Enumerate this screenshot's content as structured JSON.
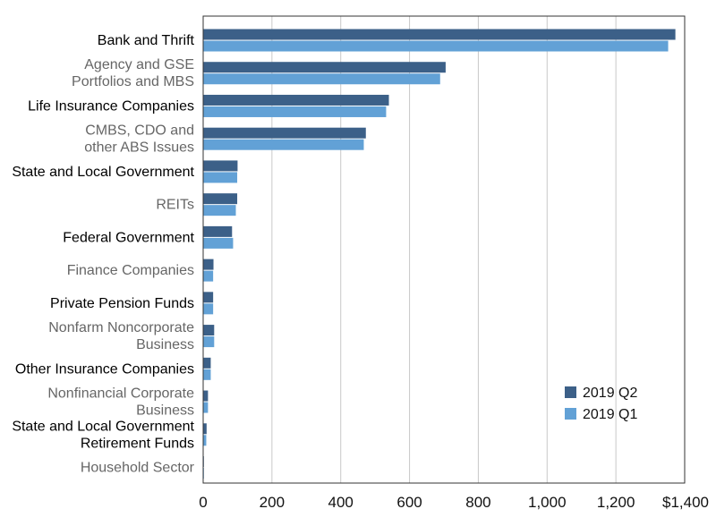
{
  "chart_data": {
    "type": "bar",
    "orientation": "horizontal",
    "categories": [
      "Bank and Thrift",
      "Agency and GSE\nPortfolios and MBS",
      "Life Insurance Companies",
      "CMBS, CDO and\nother ABS Issues",
      "State and Local Government",
      "REITs",
      "Federal Government",
      "Finance Companies",
      "Private Pension Funds",
      "Nonfarm Noncorporate\nBusiness",
      "Other Insurance Companies",
      "Nonfinancial Corporate\nBusiness",
      "State and Local Government\nRetirement Funds",
      "Household Sector"
    ],
    "category_label_colors": [
      "#000000",
      "#666666",
      "#000000",
      "#666666",
      "#000000",
      "#666666",
      "#000000",
      "#666666",
      "#000000",
      "#666666",
      "#000000",
      "#666666",
      "#000000",
      "#666666"
    ],
    "series": [
      {
        "name": "2019 Q2",
        "color": "#3c6088",
        "values": [
          1373,
          705,
          540,
          473,
          100,
          99,
          84,
          30,
          29,
          32,
          22,
          14,
          10,
          1
        ]
      },
      {
        "name": "2019 Q1",
        "color": "#62a1d6",
        "values": [
          1352,
          689,
          532,
          467,
          99,
          95,
          87,
          29,
          29,
          32,
          22,
          14,
          9,
          1
        ]
      }
    ],
    "x_ticks": [
      0,
      200,
      400,
      600,
      800,
      1000,
      1200,
      1400
    ],
    "x_tick_labels": [
      "0",
      "200",
      "400",
      "600",
      "800",
      "1,000",
      "1,200",
      "$1,400"
    ],
    "xlim": [
      0,
      1400
    ],
    "grid": "vertical",
    "legend_position": "bottom-right",
    "title": "",
    "xlabel": "",
    "ylabel": ""
  }
}
